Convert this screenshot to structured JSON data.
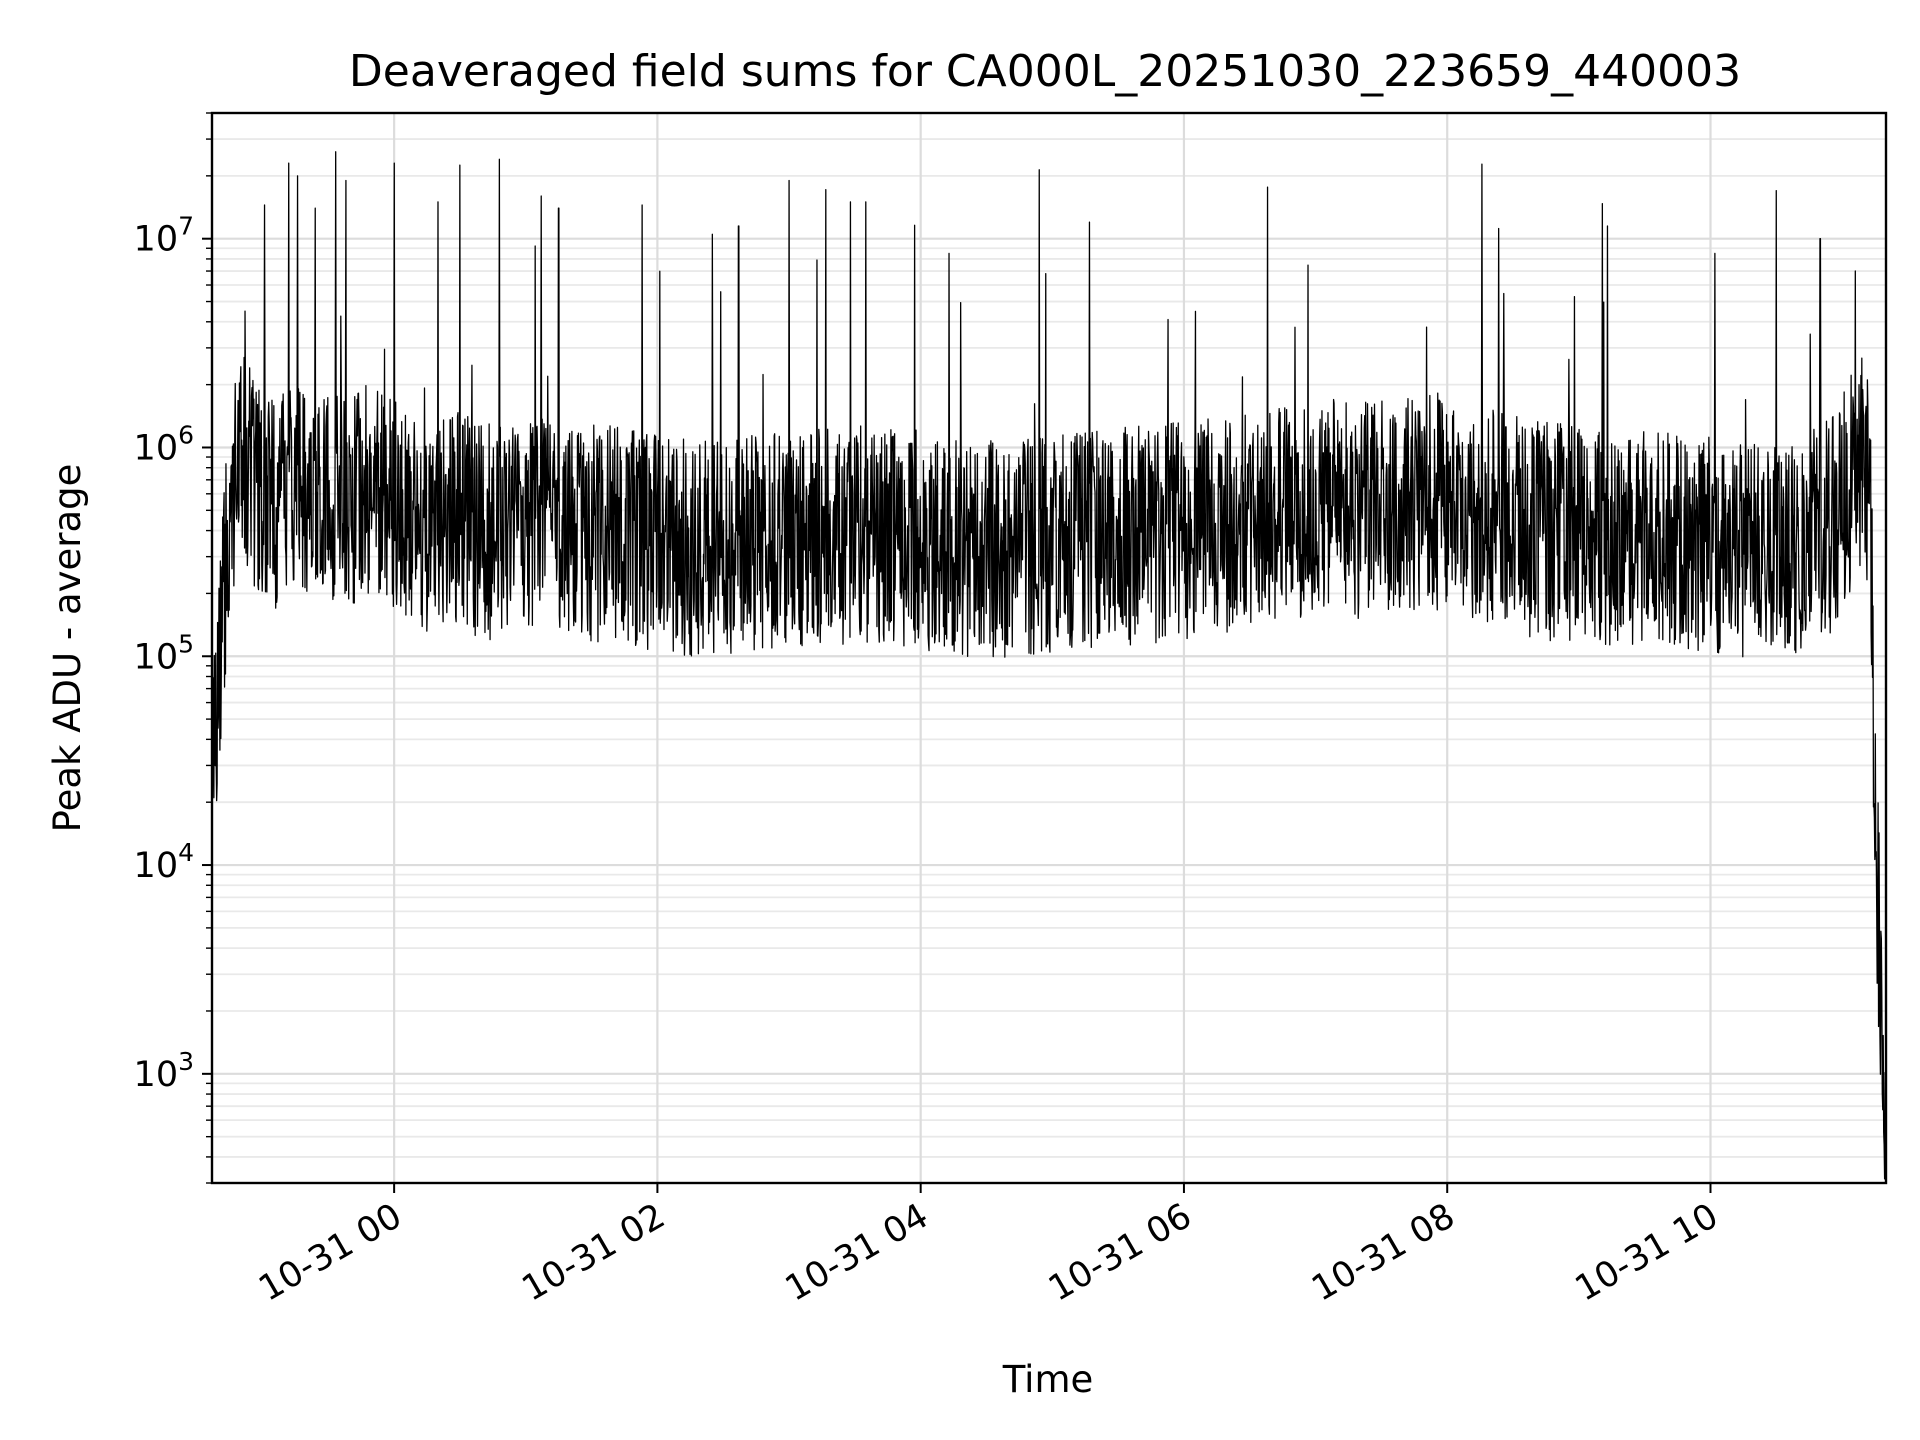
{
  "chart_data": {
    "type": "line",
    "title": "Deaveraged field sums for CA000L_20251030_223659_440003",
    "xlabel": "Time",
    "ylabel": "Peak ADU - average",
    "xscale": "time",
    "yscale": "log",
    "xlim": [
      "2025-10-30T22:36:59",
      "2025-10-31T11:20:00"
    ],
    "ylim": [
      300,
      40000000
    ],
    "x_ticks": [
      {
        "value": "2025-10-31T00:00:00",
        "label": "10-31 00"
      },
      {
        "value": "2025-10-31T02:00:00",
        "label": "10-31 02"
      },
      {
        "value": "2025-10-31T04:00:00",
        "label": "10-31 04"
      },
      {
        "value": "2025-10-31T06:00:00",
        "label": "10-31 06"
      },
      {
        "value": "2025-10-31T08:00:00",
        "label": "10-31 08"
      },
      {
        "value": "2025-10-31T10:00:00",
        "label": "10-31 10"
      }
    ],
    "y_ticks": [
      {
        "value": 1000,
        "base": "10",
        "exp": "3"
      },
      {
        "value": 10000,
        "base": "10",
        "exp": "4"
      },
      {
        "value": 100000,
        "base": "10",
        "exp": "5"
      },
      {
        "value": 1000000,
        "base": "10",
        "exp": "6"
      },
      {
        "value": 10000000,
        "base": "10",
        "exp": "7"
      }
    ],
    "grid": true,
    "line_color": "#000000",
    "series": [
      {
        "x": [
          "2025-10-30T22:37:00",
          "2025-10-30T22:40:00",
          "2025-10-30T22:45:00",
          "2025-10-30T22:50:00",
          "2025-10-30T22:55:00",
          "2025-10-30T23:00:00",
          "2025-10-30T23:10:00",
          "2025-10-30T23:20:00",
          "2025-10-30T23:30:00",
          "2025-10-30T23:40:00",
          "2025-10-30T23:50:00",
          "2025-10-31T00:00:00",
          "2025-10-31T00:15:00",
          "2025-10-31T00:30:00",
          "2025-10-31T00:45:00",
          "2025-10-31T01:00:00",
          "2025-10-31T01:20:00",
          "2025-10-31T01:40:00",
          "2025-10-31T02:00:00",
          "2025-10-31T02:20:00",
          "2025-10-31T02:40:00",
          "2025-10-31T03:00:00",
          "2025-10-31T03:20:00",
          "2025-10-31T03:40:00",
          "2025-10-31T04:00:00",
          "2025-10-31T04:20:00",
          "2025-10-31T04:40:00",
          "2025-10-31T05:00:00",
          "2025-10-31T05:20:00",
          "2025-10-31T05:40:00",
          "2025-10-31T06:00:00",
          "2025-10-31T06:20:00",
          "2025-10-31T06:40:00",
          "2025-10-31T07:00:00",
          "2025-10-31T07:20:00",
          "2025-10-31T07:40:00",
          "2025-10-31T08:00:00",
          "2025-10-31T08:20:00",
          "2025-10-31T08:40:00",
          "2025-10-31T09:00:00",
          "2025-10-31T09:20:00",
          "2025-10-31T09:40:00",
          "2025-10-31T10:00:00",
          "2025-10-31T10:20:00",
          "2025-10-31T10:40:00",
          "2025-10-31T10:55:00",
          "2025-10-31T11:05:00",
          "2025-10-31T11:10:00",
          "2025-10-31T11:13:00",
          "2025-10-31T11:15:00",
          "2025-10-31T11:17:00",
          "2025-10-31T11:19:00"
        ],
        "y": [
          20000,
          90000,
          500000,
          1100000,
          700000,
          600000,
          550000,
          650000,
          600000,
          550000,
          700000,
          500000,
          400000,
          450000,
          380000,
          420000,
          400000,
          380000,
          350000,
          330000,
          340000,
          360000,
          380000,
          380000,
          360000,
          330000,
          320000,
          340000,
          360000,
          380000,
          400000,
          420000,
          480000,
          520000,
          500000,
          520000,
          560000,
          460000,
          400000,
          380000,
          360000,
          350000,
          340000,
          330000,
          340000,
          420000,
          700000,
          900000,
          500000,
          15000,
          4000,
          800
        ]
      }
    ],
    "spikes": [
      {
        "x": "2025-10-30T22:52:00",
        "y": 4500000
      },
      {
        "x": "2025-10-30T23:01:00",
        "y": 14500000
      },
      {
        "x": "2025-10-30T23:12:00",
        "y": 23000000
      },
      {
        "x": "2025-10-30T23:16:00",
        "y": 20000000
      },
      {
        "x": "2025-10-30T23:24:00",
        "y": 14000000
      },
      {
        "x": "2025-10-30T23:38:00",
        "y": 19000000
      },
      {
        "x": "2025-10-31T00:00:00",
        "y": 23000000
      },
      {
        "x": "2025-10-31T00:20:00",
        "y": 15000000
      },
      {
        "x": "2025-10-31T00:30:00",
        "y": 22500000
      },
      {
        "x": "2025-10-31T00:48:00",
        "y": 24000000
      },
      {
        "x": "2025-10-31T01:07:00",
        "y": 16000000
      },
      {
        "x": "2025-10-31T01:15:00",
        "y": 14000000
      },
      {
        "x": "2025-10-31T01:53:00",
        "y": 14500000
      },
      {
        "x": "2025-10-31T02:25:00",
        "y": 10500000
      },
      {
        "x": "2025-10-31T02:37:00",
        "y": 11500000
      },
      {
        "x": "2025-10-31T03:00:00",
        "y": 19000000
      },
      {
        "x": "2025-10-31T03:28:00",
        "y": 15000000
      },
      {
        "x": "2025-10-31T03:35:00",
        "y": 15000000
      },
      {
        "x": "2025-10-31T04:13:00",
        "y": 8500000
      },
      {
        "x": "2025-10-31T04:57:00",
        "y": 6800000
      },
      {
        "x": "2025-10-31T05:17:00",
        "y": 12000000
      },
      {
        "x": "2025-10-31T09:13:00",
        "y": 11500000
      },
      {
        "x": "2025-10-31T10:02:00",
        "y": 8500000
      },
      {
        "x": "2025-10-31T10:30:00",
        "y": 17000000
      },
      {
        "x": "2025-10-31T10:50:00",
        "y": 10000000
      },
      {
        "x": "2025-10-31T11:06:00",
        "y": 7000000
      }
    ]
  }
}
